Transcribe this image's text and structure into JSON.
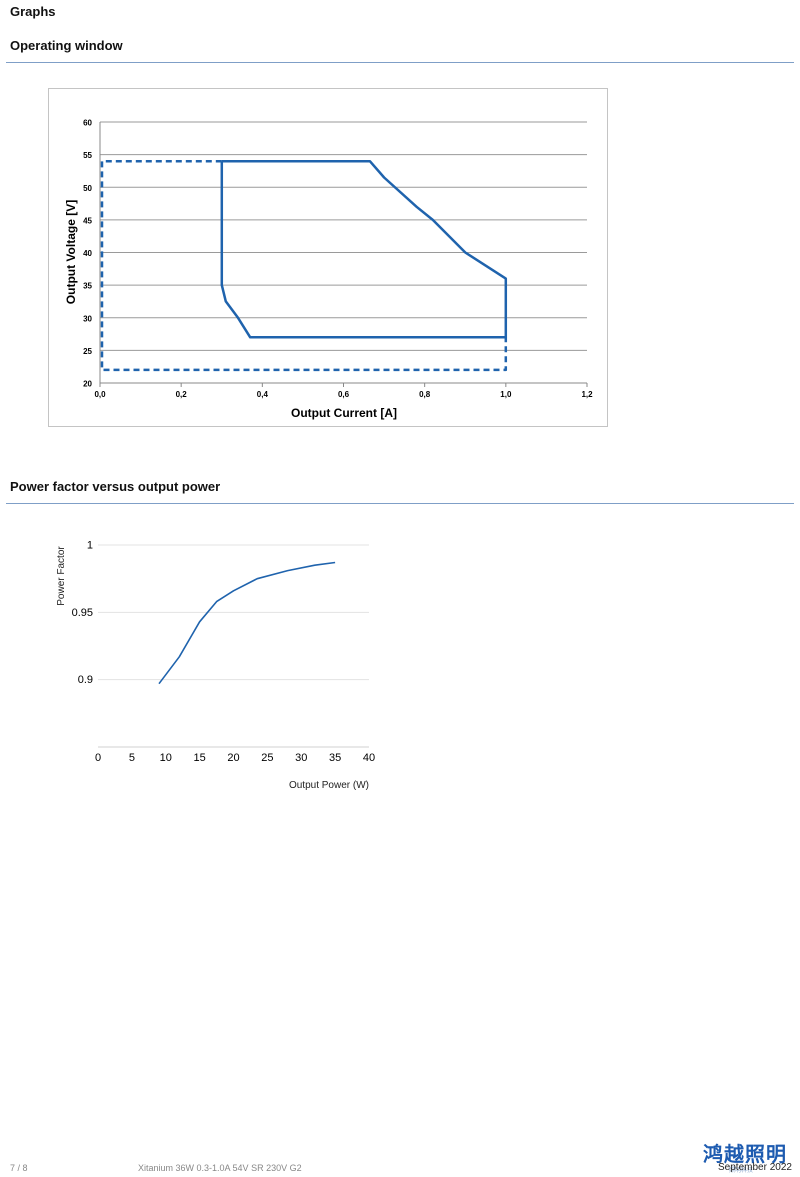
{
  "page": {
    "heading": "Graphs",
    "footer_page": "7 / 8",
    "footer_product": "Xitanium 36W 0.3-1.0A 54V SR 230V G2",
    "footer_date": "September 2022",
    "logo_text": "鸿越照明",
    "logo_subtext": "照明科技"
  },
  "sections": {
    "operating_window": {
      "title": "Operating window"
    },
    "power_factor": {
      "title": "Power factor versus output power"
    }
  },
  "colors": {
    "line": "#1f63ad",
    "rule": "#7f9fc7",
    "grid": "#9a9a9a"
  },
  "chart_data": [
    {
      "type": "line",
      "xlabel": "Output Current [A]",
      "ylabel": "Output Voltage [V]",
      "xlim": [
        0,
        1.2
      ],
      "ylim": [
        20,
        60
      ],
      "x_ticks": [
        "0,0",
        "0,2",
        "0,4",
        "0,6",
        "0,8",
        "1,0",
        "1,2"
      ],
      "y_ticks": [
        "20",
        "25",
        "30",
        "35",
        "40",
        "45",
        "50",
        "55",
        "60"
      ],
      "grid": "horizontal",
      "series": [
        {
          "style": "solid",
          "points": [
            [
              0.3,
              54
            ],
            [
              0.665,
              54
            ],
            [
              0.7,
              51.5
            ],
            [
              0.78,
              47
            ],
            [
              0.82,
              45
            ],
            [
              0.9,
              40
            ],
            [
              1.0,
              36
            ],
            [
              1.0,
              27
            ],
            [
              0.37,
              27
            ],
            [
              0.34,
              30
            ],
            [
              0.31,
              32.5
            ],
            [
              0.3,
              35
            ],
            [
              0.3,
              54
            ]
          ]
        },
        {
          "style": "dashed",
          "points": [
            [
              0.3,
              54
            ],
            [
              0.005,
              54
            ],
            [
              0.005,
              22
            ],
            [
              1.0,
              22
            ],
            [
              1.0,
              27
            ]
          ]
        }
      ]
    },
    {
      "type": "line",
      "xlabel": "Output Power (W)",
      "ylabel": "Power Factor",
      "xlim": [
        0,
        40
      ],
      "ylim": [
        0.85,
        1.0
      ],
      "x_ticks": [
        "0",
        "5",
        "10",
        "15",
        "20",
        "25",
        "30",
        "35",
        "40"
      ],
      "y_ticks": [
        "0.9",
        "0.95",
        "1"
      ],
      "grid": "horizontal",
      "series": [
        {
          "style": "solid",
          "points": [
            [
              9,
              0.897
            ],
            [
              12,
              0.917
            ],
            [
              15,
              0.943
            ],
            [
              17.5,
              0.958
            ],
            [
              20,
              0.966
            ],
            [
              23.5,
              0.975
            ],
            [
              28,
              0.981
            ],
            [
              32,
              0.985
            ],
            [
              35,
              0.987
            ]
          ]
        }
      ]
    }
  ]
}
